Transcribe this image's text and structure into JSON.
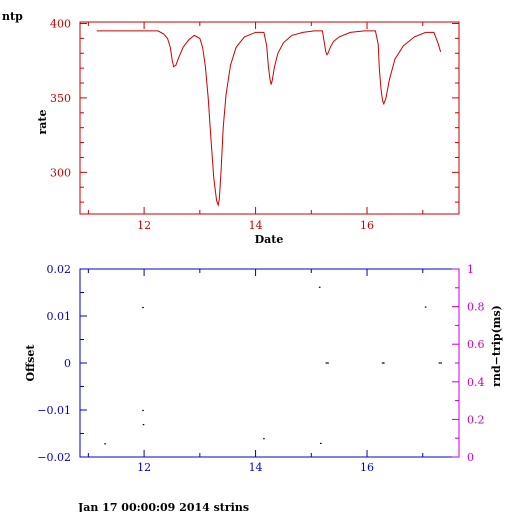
{
  "page": {
    "title": "ntp",
    "footer": "Jan 17 00:00:09 2014 strins"
  },
  "colors": {
    "rate": "#cc0000",
    "offset": "#0000cc",
    "rtt": "#cc00cc",
    "point": "#000000"
  },
  "chart_data": [
    {
      "type": "line",
      "xlabel": "Date",
      "ylabel": "rate",
      "xlim": [
        10.85,
        17.65
      ],
      "ylim": [
        272,
        401
      ],
      "xticks": [
        12,
        14,
        16
      ],
      "xtick_labels": [
        "12",
        "14",
        "16"
      ],
      "yticks": [
        300,
        350,
        400
      ],
      "ytick_labels": [
        "300",
        "350",
        "400"
      ],
      "series": [
        {
          "x": [
            11.15,
            11.5,
            12.0,
            12.25,
            12.35,
            12.42,
            12.47,
            12.5,
            12.53,
            12.57,
            12.62,
            12.7,
            12.8,
            12.9,
            13.0,
            13.05,
            13.1,
            13.15,
            13.2,
            13.25,
            13.3,
            13.33,
            13.35,
            13.38,
            13.42,
            13.47,
            13.55,
            13.65,
            13.8,
            14.0,
            14.15,
            14.2,
            14.23,
            14.26,
            14.28,
            14.3,
            14.34,
            14.4,
            14.5,
            14.65,
            14.85,
            15.05,
            15.2,
            15.23,
            15.26,
            15.28,
            15.3,
            15.34,
            15.4,
            15.5,
            15.7,
            15.95,
            16.15,
            16.2,
            16.22,
            16.25,
            16.28,
            16.3,
            16.34,
            16.4,
            16.5,
            16.65,
            16.85,
            17.05,
            17.2,
            17.28,
            17.32
          ],
          "y": [
            395,
            395,
            395,
            395,
            393,
            390,
            384,
            376,
            371,
            372,
            377,
            384,
            389,
            392,
            390,
            384,
            371,
            350,
            322,
            296,
            281,
            278,
            282,
            300,
            330,
            352,
            372,
            384,
            391,
            394,
            394,
            385,
            371,
            362,
            359,
            362,
            371,
            380,
            387,
            392,
            394,
            395,
            395,
            388,
            381,
            379,
            380,
            384,
            388,
            391,
            394,
            395,
            395,
            386,
            370,
            356,
            348,
            346,
            350,
            362,
            376,
            385,
            391,
            394,
            394,
            386,
            381
          ]
        }
      ]
    },
    {
      "type": "scatter",
      "xlim": [
        10.85,
        17.65
      ],
      "ylabel": "Offset",
      "ylim": [
        -0.02,
        0.02
      ],
      "yticks": [
        -0.02,
        -0.01,
        0,
        0.01,
        0.02
      ],
      "ytick_labels": [
        "−0.02",
        "−0.01",
        "0",
        "0.01",
        "0.02"
      ],
      "y2label": "rnd−trip(ms)",
      "y2lim": [
        0,
        1
      ],
      "y2ticks": [
        0,
        0.2,
        0.4,
        0.6,
        0.8,
        1
      ],
      "y2tick_labels": [
        "0",
        "0.2",
        "0.4",
        "0.6",
        "0.8",
        "1"
      ],
      "xticks": [
        12,
        14,
        16
      ],
      "xtick_labels": [
        "12",
        "14",
        "16"
      ],
      "series": [
        {
          "x": [
            11.3,
            11.98,
            11.98,
            11.99,
            14.15,
            15.15,
            15.17,
            15.27,
            15.3,
            16.28,
            16.3,
            17.05,
            17.3,
            17.33
          ],
          "y": [
            -0.0172,
            0.0118,
            -0.0101,
            -0.0131,
            -0.0161,
            0.0161,
            -0.0171,
            0.0,
            0.0,
            0.0,
            0.0,
            0.0119,
            0.0,
            0.0
          ]
        }
      ]
    }
  ]
}
